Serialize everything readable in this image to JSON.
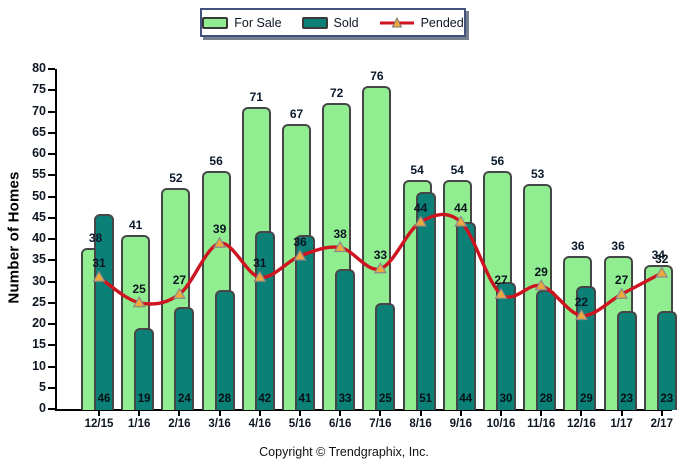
{
  "legend": {
    "items": [
      {
        "id": "for-sale",
        "label": "For Sale",
        "swatch": "bar",
        "color": "#90EE90"
      },
      {
        "id": "sold",
        "label": "Sold",
        "swatch": "bar",
        "color": "#0B8077"
      },
      {
        "id": "pended",
        "label": "Pended",
        "swatch": "line",
        "color": "#CE1420",
        "marker_color": "#EDA93F"
      }
    ]
  },
  "footer": {
    "copyright": "Copyright © Trendgraphix, Inc."
  },
  "chart_data": {
    "type": "bar",
    "subtype": "overlapped-bar-pairs-with-smooth-line",
    "categories": [
      "12/15",
      "1/16",
      "2/16",
      "3/16",
      "4/16",
      "5/16",
      "6/16",
      "7/16",
      "8/16",
      "9/16",
      "10/16",
      "11/16",
      "12/16",
      "1/17",
      "2/17"
    ],
    "series": [
      {
        "name": "For Sale",
        "type": "bar",
        "color": "#90EE90",
        "values": [
          38,
          41,
          52,
          56,
          71,
          67,
          72,
          76,
          54,
          54,
          56,
          53,
          36,
          36,
          34
        ]
      },
      {
        "name": "Sold",
        "type": "bar",
        "color": "#0B8077",
        "values": [
          46,
          19,
          24,
          28,
          42,
          41,
          33,
          25,
          51,
          44,
          30,
          28,
          29,
          23,
          23
        ]
      },
      {
        "name": "Pended",
        "type": "line",
        "color": "#CE1420",
        "marker": "triangle",
        "marker_color": "#EDA93F",
        "values": [
          31,
          25,
          27,
          39,
          31,
          36,
          38,
          33,
          44,
          44,
          27,
          29,
          22,
          27,
          32
        ]
      }
    ],
    "title": "",
    "xlabel": "",
    "ylabel": "Number of Homes",
    "ylim": [
      0,
      80
    ],
    "ytick_step": 5,
    "grid": false,
    "legend_position": "top-center"
  }
}
